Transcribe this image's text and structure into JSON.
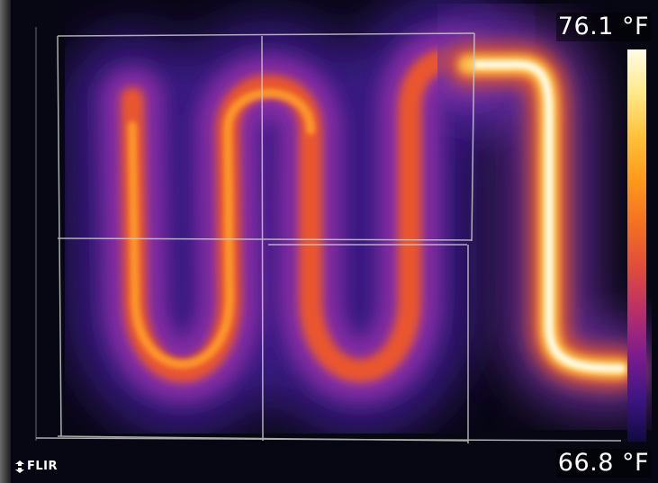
{
  "image": {
    "subject": "thermal image of serpentine radiant heating pipe under floor panels",
    "palette": "iron"
  },
  "scale": {
    "max_label": "76.1 °F",
    "min_label": "66.8 °F",
    "colors": [
      "#fffbe8",
      "#ffe98a",
      "#ffc23a",
      "#ff9a1c",
      "#f5721f",
      "#e04b3c",
      "#b82e6a",
      "#7c1c8e",
      "#3e1582",
      "#120a40"
    ]
  },
  "branding": {
    "logo_text": "FLIR",
    "logo_icon": "flir-logo-icon"
  }
}
